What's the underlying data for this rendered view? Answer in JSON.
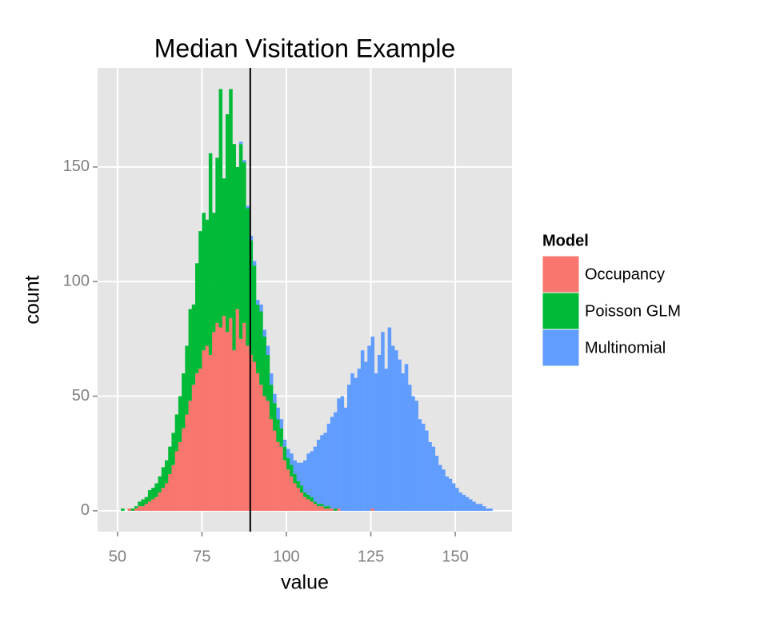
{
  "chart_data": {
    "type": "histogram",
    "title": "Median Visitation Example",
    "x_label": "value",
    "y_label": "count",
    "legend_title": "Model",
    "bins": [
      51,
      52,
      53,
      54,
      55,
      56,
      57,
      58,
      59,
      60,
      61,
      62,
      63,
      64,
      65,
      66,
      67,
      68,
      69,
      70,
      71,
      72,
      73,
      74,
      75,
      76,
      77,
      78,
      79,
      80,
      81,
      82,
      83,
      84,
      85,
      86,
      87,
      88,
      89,
      90,
      91,
      92,
      93,
      94,
      95,
      96,
      97,
      98,
      99,
      100,
      101,
      102,
      103,
      104,
      105,
      106,
      107,
      108,
      109,
      110,
      111,
      112,
      113,
      114,
      115,
      116,
      117,
      118,
      119,
      120,
      121,
      122,
      123,
      124,
      125,
      126,
      127,
      128,
      129,
      130,
      131,
      132,
      133,
      134,
      135,
      136,
      137,
      138,
      139,
      140,
      141,
      142,
      143,
      144,
      145,
      146,
      147,
      148,
      149,
      150,
      151,
      152,
      153,
      154,
      155,
      156,
      157,
      158,
      159,
      160,
      161
    ],
    "series": [
      {
        "name": "Occupancy",
        "color": "#F8766D",
        "values": [
          0,
          0,
          1,
          0,
          1,
          2,
          2,
          3,
          4,
          5,
          6,
          8,
          10,
          12,
          16,
          20,
          26,
          30,
          36,
          42,
          48,
          55,
          60,
          62,
          70,
          72,
          68,
          78,
          82,
          80,
          85,
          78,
          84,
          70,
          88,
          75,
          82,
          72,
          68,
          65,
          60,
          55,
          50,
          48,
          40,
          35,
          30,
          28,
          22,
          18,
          15,
          12,
          10,
          8,
          6,
          5,
          4,
          3,
          2,
          2,
          1,
          1,
          1,
          0,
          1,
          0,
          0,
          0,
          0,
          0,
          0,
          0,
          0,
          0,
          1,
          0,
          0,
          0,
          0,
          0,
          0,
          0,
          0,
          0,
          0,
          0,
          0,
          0,
          0,
          0,
          0,
          0,
          0,
          0,
          0,
          0,
          0,
          0,
          0,
          0,
          0,
          0,
          0,
          0,
          0,
          0,
          0,
          0,
          0,
          0
        ]
      },
      {
        "name": "Poisson GLM",
        "color": "#00BA38",
        "values": [
          1,
          0,
          0,
          1,
          1,
          2,
          3,
          3,
          5,
          5,
          6,
          7,
          9,
          10,
          12,
          14,
          16,
          20,
          24,
          30,
          40,
          35,
          48,
          60,
          60,
          55,
          88,
          52,
          72,
          104,
          60,
          95,
          100,
          90,
          62,
          85,
          70,
          60,
          50,
          42,
          30,
          32,
          26,
          20,
          15,
          12,
          10,
          8,
          6,
          5,
          5,
          4,
          3,
          3,
          2,
          2,
          2,
          1,
          1,
          1,
          1,
          1,
          0,
          1,
          0,
          0,
          0,
          0,
          0,
          0,
          0,
          0,
          0,
          0,
          0,
          0,
          0,
          0,
          0,
          0,
          0,
          0,
          0,
          0,
          0,
          0,
          0,
          0,
          0,
          0,
          0,
          0,
          0,
          0,
          0,
          0,
          0,
          0,
          0,
          0,
          0,
          0,
          0,
          0,
          0,
          0,
          0,
          0,
          0,
          0
        ]
      },
      {
        "name": "Multinomial",
        "color": "#619CFF",
        "values": [
          0,
          0,
          0,
          0,
          0,
          0,
          0,
          0,
          0,
          0,
          0,
          0,
          0,
          0,
          0,
          0,
          0,
          0,
          0,
          0,
          0,
          0,
          0,
          0,
          0,
          0,
          0,
          0,
          0,
          0,
          0,
          0,
          0,
          0,
          0,
          1,
          1,
          1,
          2,
          2,
          2,
          3,
          3,
          4,
          5,
          4,
          5,
          4,
          3,
          4,
          5,
          6,
          8,
          10,
          14,
          18,
          20,
          24,
          28,
          30,
          32,
          36,
          40,
          42,
          48,
          50,
          45,
          55,
          60,
          58,
          62,
          70,
          65,
          72,
          75,
          60,
          68,
          78,
          62,
          80,
          72,
          70,
          66,
          60,
          64,
          55,
          50,
          48,
          40,
          38,
          35,
          30,
          28,
          24,
          20,
          18,
          15,
          14,
          12,
          10,
          8,
          7,
          6,
          5,
          4,
          3,
          3,
          2,
          1,
          1
        ]
      }
    ],
    "stacked": true,
    "vline": 89.3,
    "xlim": [
      44.1,
      166.8
    ],
    "xticks": [
      50,
      75,
      100,
      125,
      150
    ],
    "ylim": [
      -9.1,
      193.2
    ],
    "yticks": [
      0,
      50,
      100,
      150
    ],
    "grid": true
  }
}
